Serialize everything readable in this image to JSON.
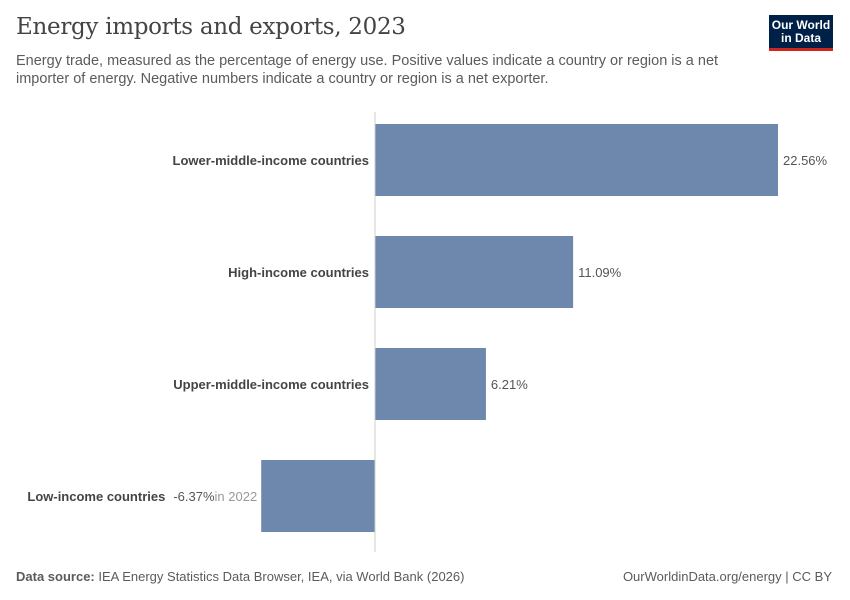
{
  "header": {
    "title": "Energy imports and exports, 2023",
    "subtitle": "Energy trade, measured as the percentage of energy use. Positive values indicate a country or region is a net importer of energy. Negative numbers indicate a country or region is a net exporter.",
    "logo": "Our World in Data"
  },
  "footer": {
    "source_label": "Data source:",
    "source": "IEA Energy Statistics Data Browser, IEA, via World Bank (2026)",
    "credit": "OurWorldinData.org/energy | CC BY"
  },
  "colors": {
    "bar": "#6d87ad",
    "axis": "#cccccc",
    "logo_bg": "#002147",
    "logo_accent": "#ce261e"
  },
  "chart_data": {
    "type": "bar",
    "orientation": "horizontal",
    "title": "Energy imports and exports, 2023",
    "categories": [
      "Lower-middle-income countries",
      "High-income countries",
      "Upper-middle-income countries",
      "Low-income countries"
    ],
    "values": [
      22.56,
      11.09,
      6.21,
      -6.37
    ],
    "labels": [
      "22.56%",
      "11.09%",
      "6.21%",
      "-6.37%"
    ],
    "annotations": [
      "",
      "",
      "",
      "in 2022"
    ],
    "unit": "%",
    "grid": false
  }
}
